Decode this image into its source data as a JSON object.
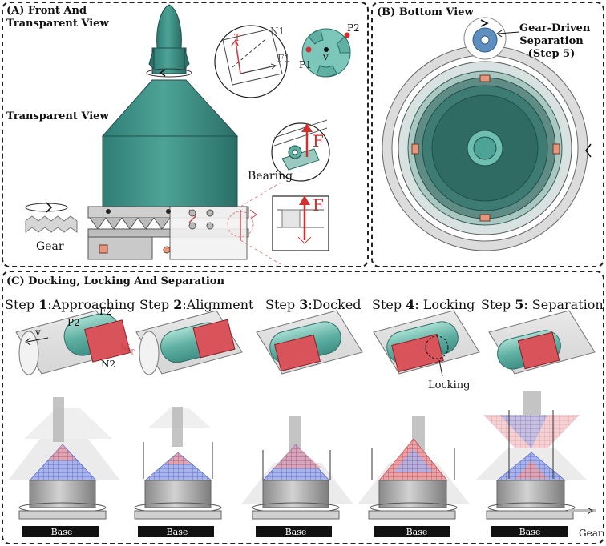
{
  "panel_a": {
    "title_line1": "(A) Front And",
    "title_line2": "Transparent View",
    "transparent_view": "Transparent View",
    "gear": "Gear",
    "bearing": "Bearing",
    "force_f": "F",
    "inset_labels": {
      "t": "T",
      "n1": "N1",
      "f1": "F1",
      "p1": "P1",
      "p2": "P2",
      "v": "v"
    }
  },
  "panel_b": {
    "title": "(B) Bottom View",
    "gear_note_line1": "Gear-Driven",
    "gear_note_line2": "Separation",
    "gear_note_line3": "(Step 5)"
  },
  "panel_c": {
    "title": "(C) Docking, Locking And Separation",
    "steps": [
      {
        "prefix": "Step ",
        "num": "1",
        "name": ":Approaching"
      },
      {
        "prefix": "Step ",
        "num": "2",
        "name": ":Alignment"
      },
      {
        "prefix": "Step ",
        "num": "3",
        "name": ":Docked"
      },
      {
        "prefix": "Step ",
        "num": "4",
        "name": ": Locking"
      },
      {
        "prefix": "Step ",
        "num": "5",
        "name": ": Separation"
      }
    ],
    "step1_labels": {
      "v": "v",
      "p2": "P2",
      "f2": "F2",
      "n2": "N2",
      "mt": "M",
      "mt_sub": "T"
    },
    "locking": "Locking",
    "base": "Base",
    "gear": "Gear"
  },
  "colors": {
    "teal": "#3f8f86",
    "teal_dark": "#2c6f68",
    "teal_light": "#7cc7b9",
    "red": "#c7424a",
    "blue": "#4d62c9",
    "gray": "#a9a9a9"
  }
}
